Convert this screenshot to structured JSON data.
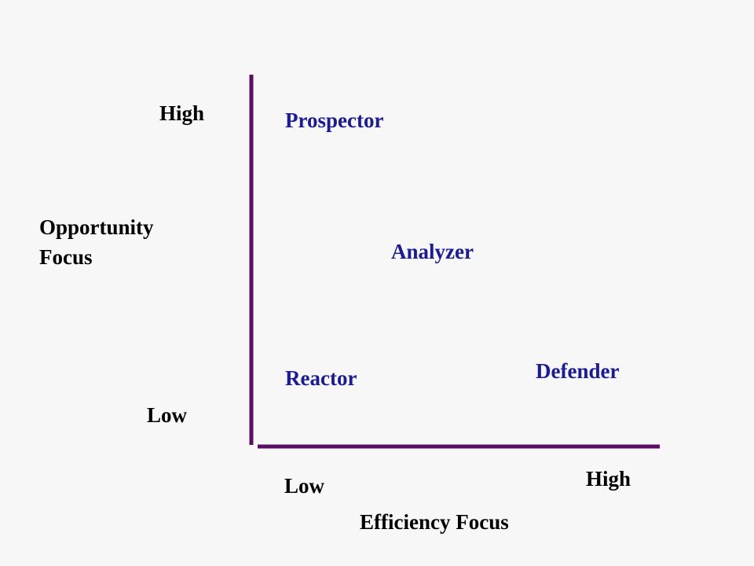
{
  "y_axis": {
    "label_lines": [
      "Opportunity",
      "Focus"
    ],
    "high": "High",
    "low": "Low"
  },
  "x_axis": {
    "label": "Efficiency Focus",
    "low": "Low",
    "high": "High"
  },
  "types": [
    {
      "label": "Prospector"
    },
    {
      "label": "Analyzer"
    },
    {
      "label": "Reactor"
    },
    {
      "label": "Defender"
    }
  ]
}
